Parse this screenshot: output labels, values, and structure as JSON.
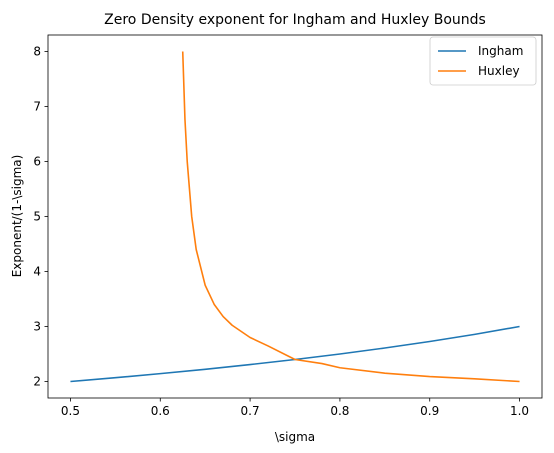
{
  "chart_data": {
    "type": "line",
    "title": "Zero Density exponent for Ingham and Huxley Bounds",
    "xlabel": "\\sigma",
    "ylabel": "Exponent/(1-\\sigma)",
    "xlim": [
      0.475,
      1.025
    ],
    "ylim": [
      1.7,
      8.3
    ],
    "xticks": [
      "0.5",
      "0.6",
      "0.7",
      "0.8",
      "0.9",
      "1.0"
    ],
    "yticks": [
      "2",
      "3",
      "4",
      "5",
      "6",
      "7",
      "8"
    ],
    "grid": false,
    "legend": "top-right",
    "series": [
      {
        "name": "Ingham",
        "color": "#1f77b4",
        "x": [
          0.5,
          0.55,
          0.6,
          0.65,
          0.7,
          0.75,
          0.8,
          0.85,
          0.9,
          0.95,
          1.0
        ],
        "y": [
          2.0,
          2.069,
          2.143,
          2.222,
          2.308,
          2.4,
          2.5,
          2.609,
          2.727,
          2.857,
          3.0
        ]
      },
      {
        "name": "Huxley",
        "color": "#ff7f0e",
        "x": [
          0.625,
          0.6275,
          0.63,
          0.635,
          0.64,
          0.65,
          0.66,
          0.67,
          0.68,
          0.7,
          0.72,
          0.75,
          0.78,
          0.8,
          0.85,
          0.9,
          0.95,
          1.0
        ],
        "y": [
          8.0,
          6.76,
          6.0,
          5.0,
          4.4,
          3.75,
          3.403,
          3.181,
          3.023,
          2.8,
          2.647,
          2.4,
          2.326,
          2.25,
          2.151,
          2.089,
          2.049,
          2.0
        ]
      }
    ]
  }
}
